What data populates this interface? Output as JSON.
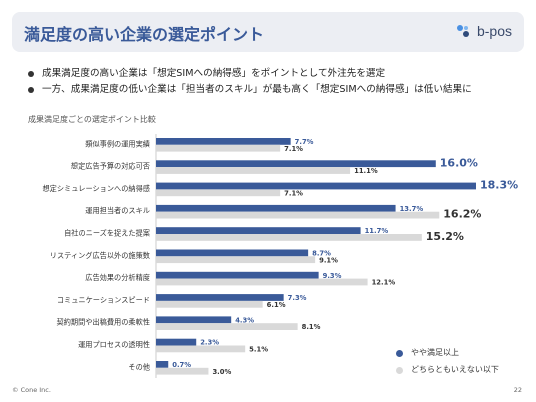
{
  "header": {
    "title": "満足度の高い企業の選定ポイント",
    "logo_text": "b-pos"
  },
  "bullets": [
    "成果満足度の高い企業は「想定SIMへの納得感」をポイントとして外注先を選定",
    "一方、成果満足度の低い企業は「担当者のスキル」が最も高く「想定SIMへの納得感」は低い結果に"
  ],
  "chart_data": {
    "type": "bar",
    "title": "成果満足度ごとの選定ポイント比較",
    "categories": [
      "類似事例の運用実績",
      "想定広告予算の対応可否",
      "想定シミュレーションへの納得感",
      "運用担当者のスキル",
      "自社のニーズを捉えた提案",
      "リスティング広告以外の施策数",
      "広告効果の分析精度",
      "コミュニケーションスピード",
      "契約期間や出稿費用の柔軟性",
      "運用プロセスの透明性",
      "その他"
    ],
    "series": [
      {
        "name": "やや満足以上",
        "color": "#3a5a99",
        "values": [
          7.7,
          16.0,
          18.3,
          13.7,
          11.7,
          8.7,
          9.3,
          7.3,
          4.3,
          2.3,
          0.7
        ]
      },
      {
        "name": "どちらともいえない以下",
        "color": "#d9d9d9",
        "values": [
          7.1,
          11.1,
          7.1,
          16.2,
          15.2,
          9.1,
          12.1,
          6.1,
          8.1,
          5.1,
          3.0
        ]
      }
    ],
    "value_suffix": "%",
    "emphasized_labels": {
      "0": [
        1,
        2
      ],
      "1": [
        3,
        4
      ]
    },
    "xlim": [
      0,
      18.3
    ],
    "grid": false,
    "legend": "bottom-right"
  },
  "footer": {
    "copyright": "© Cone Inc.",
    "page_number": "22"
  }
}
